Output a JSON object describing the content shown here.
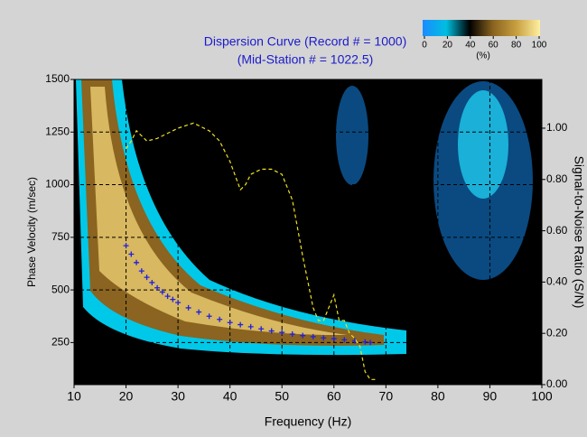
{
  "chart_data": {
    "type": "scatter",
    "title": "Dispersion Curve (Record # = 1000)",
    "subtitle": "(Mid-Station # = 1022.5)",
    "x_label": "Frequency (Hz)",
    "y_label": "Phase Velocity (m/sec)",
    "y2_label": "Signal-to-Noise Ratio (S/N)",
    "xlim": [
      10,
      100
    ],
    "xticks": [
      10,
      20,
      30,
      40,
      50,
      60,
      70,
      80,
      90,
      100
    ],
    "ylim": [
      50,
      1500
    ],
    "yticks": [
      250,
      500,
      750,
      1000,
      1250,
      1500
    ],
    "y2lim": [
      0,
      1.19
    ],
    "y2ticks": [
      {
        "value": 0,
        "label": "0.00"
      },
      {
        "value": 0.2,
        "label": "0.20"
      },
      {
        "value": 0.4,
        "label": "0.40"
      },
      {
        "value": 0.6,
        "label": "0.60"
      },
      {
        "value": 0.8,
        "label": "0.80"
      },
      {
        "value": 1,
        "label": "1.00"
      }
    ],
    "grid": true,
    "series": [
      {
        "color": "#2020e0",
        "marker": "cross",
        "x": [
          20,
          21,
          22,
          23,
          24,
          25,
          26,
          27,
          28,
          29,
          30,
          32,
          34,
          36,
          38,
          40,
          42,
          44,
          46,
          48,
          50,
          52,
          54,
          56,
          58,
          60,
          62,
          64,
          66,
          67
        ],
        "values": [
          710,
          670,
          630,
          590,
          560,
          535,
          510,
          490,
          470,
          455,
          440,
          415,
          395,
          375,
          360,
          345,
          335,
          325,
          315,
          305,
          298,
          290,
          283,
          278,
          272,
          268,
          263,
          258,
          253,
          250
        ]
      },
      {
        "color": "#f0e020",
        "marker": "dashed-line",
        "axis": "y2",
        "x": [
          20,
          21,
          22,
          24,
          26,
          28,
          30,
          33,
          36,
          38,
          40,
          42,
          43,
          44,
          46,
          48,
          50,
          52,
          54,
          56,
          57,
          58,
          59,
          60,
          61,
          62,
          63,
          64,
          65,
          66,
          67,
          68
        ],
        "values": [
          0.92,
          0.95,
          0.99,
          0.95,
          0.96,
          0.98,
          1.0,
          1.02,
          0.99,
          0.95,
          0.87,
          0.76,
          0.78,
          0.82,
          0.84,
          0.84,
          0.82,
          0.72,
          0.5,
          0.3,
          0.25,
          0.25,
          0.3,
          0.35,
          0.25,
          0.25,
          0.2,
          0.18,
          0.15,
          0.05,
          0.02,
          0.02
        ]
      }
    ],
    "colorbar": {
      "lim": [
        0,
        100
      ],
      "ticks": [
        0,
        20,
        40,
        60,
        80,
        100
      ],
      "label": "(%)",
      "colors": [
        "#1a8cff",
        "#00bfe0",
        "#000000",
        "#8a6420",
        "#c8a040",
        "#fff0a0"
      ]
    }
  }
}
